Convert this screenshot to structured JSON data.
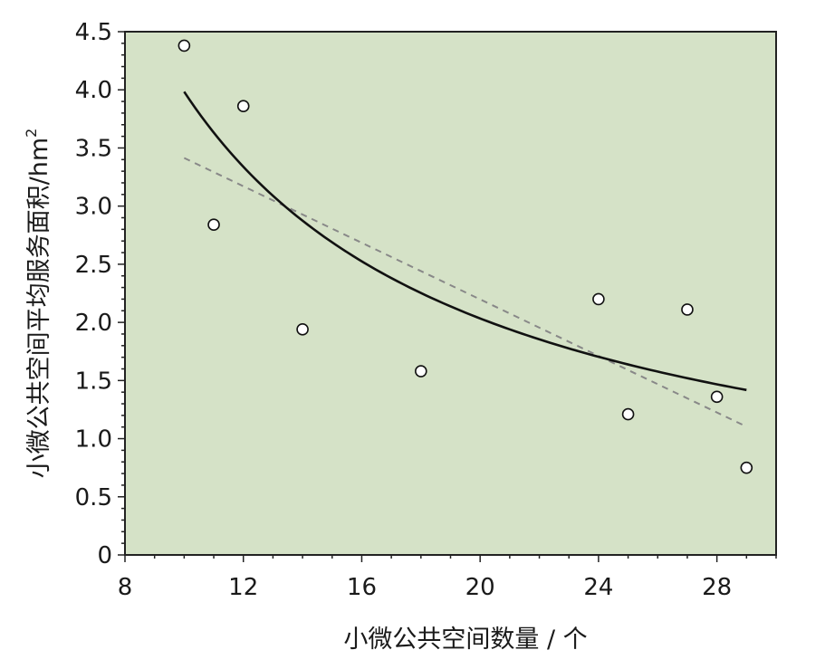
{
  "chart_data": {
    "type": "scatter",
    "xlabel": "小微公共空间数量 / 个",
    "ylabel_main": "小微公共空间平均服务面积/hm",
    "ylabel_sup": "2",
    "xlim": [
      8,
      30
    ],
    "ylim": [
      0,
      4.5
    ],
    "xticks": [
      8,
      12,
      16,
      20,
      24,
      28
    ],
    "xtick_labels": [
      "8",
      "12",
      "16",
      "20",
      "24",
      "28"
    ],
    "yticks": [
      0,
      0.5,
      1.0,
      1.5,
      2.0,
      2.5,
      3.0,
      3.5,
      4.0,
      4.5
    ],
    "ytick_labels": [
      "0",
      "0.5",
      "1.0",
      "1.5",
      "2.0",
      "2.5",
      "3.0",
      "3.5",
      "4.0",
      "4.5"
    ],
    "points": [
      {
        "x": 10,
        "y": 4.38
      },
      {
        "x": 11,
        "y": 2.84
      },
      {
        "x": 12,
        "y": 3.86
      },
      {
        "x": 14,
        "y": 1.94
      },
      {
        "x": 18,
        "y": 1.58
      },
      {
        "x": 24,
        "y": 2.2
      },
      {
        "x": 25,
        "y": 1.21
      },
      {
        "x": 27,
        "y": 2.11
      },
      {
        "x": 28,
        "y": 1.36
      },
      {
        "x": 29,
        "y": 0.75
      }
    ],
    "power_fit": {
      "style": "solid",
      "color": "#111111",
      "a": 37.18,
      "b": -0.97,
      "x_range": [
        10,
        29
      ]
    },
    "linear_fit": {
      "style": "dashed",
      "color": "#888888",
      "slope": -0.1216,
      "intercept": 4.63,
      "x_range": [
        10,
        29
      ]
    },
    "background_color": "#d5e2c7",
    "grid": false
  }
}
